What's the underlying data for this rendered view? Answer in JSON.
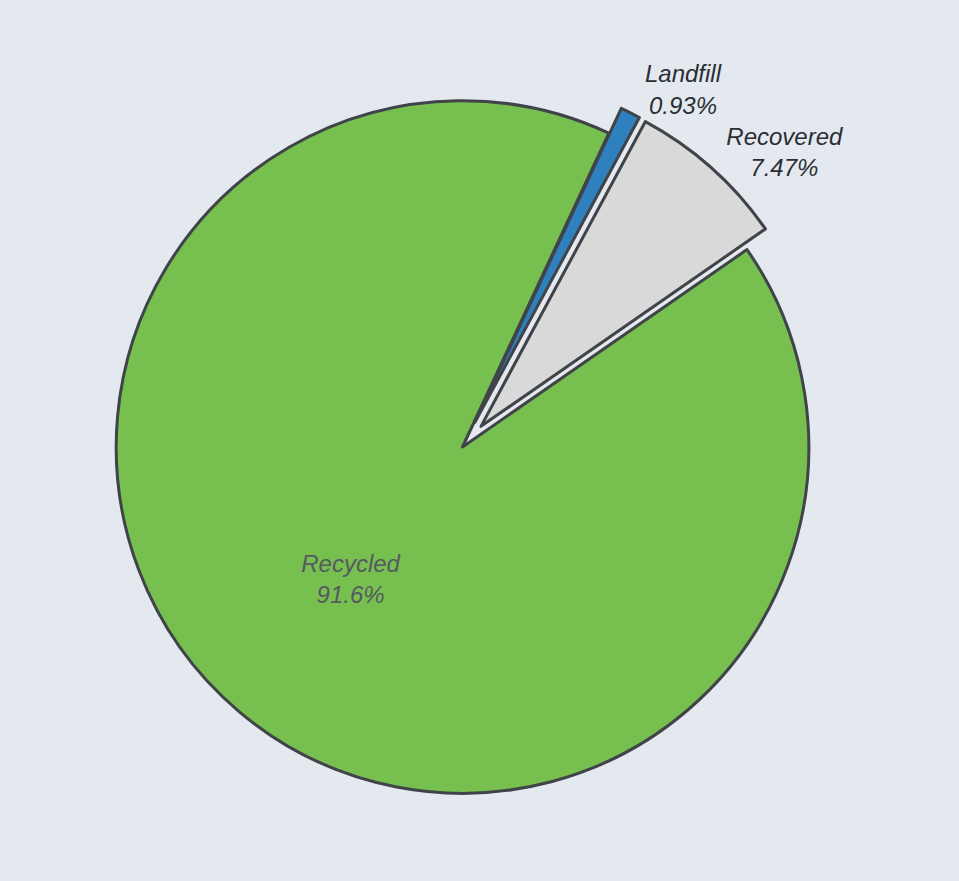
{
  "chart_data": {
    "type": "pie",
    "categories": [
      "Landfill",
      "Recovered",
      "Recycled"
    ],
    "values": [
      0.93,
      7.47,
      91.6
    ],
    "value_labels": [
      "0.93%",
      "7.47%",
      "91.6%"
    ],
    "colors": [
      "#2e80be",
      "#d9d9d9",
      "#77c050"
    ],
    "data_labels": true
  }
}
